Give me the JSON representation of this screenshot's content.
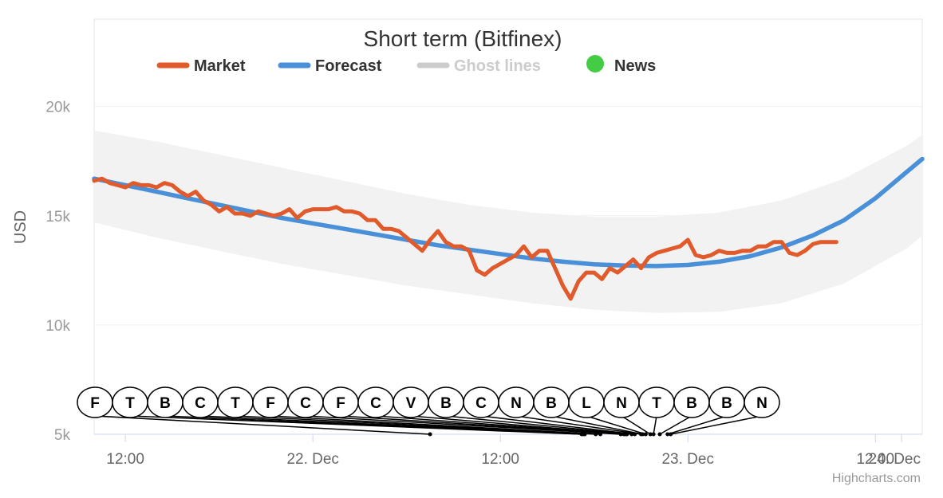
{
  "chart_data": {
    "type": "line",
    "title": "Short term (Bitfinex)",
    "ylabel": "USD",
    "xlabel": "",
    "ylim": [
      5000,
      24000
    ],
    "y_ticks": [
      {
        "value": 5000,
        "label": "5k"
      },
      {
        "value": 10000,
        "label": "10k"
      },
      {
        "value": 15000,
        "label": "15k"
      },
      {
        "value": 20000,
        "label": "20k"
      }
    ],
    "x_range_hours": [
      0,
      53
    ],
    "x_ticks": [
      {
        "hours": 2,
        "label": "12:00"
      },
      {
        "hours": 14,
        "label": "22. Dec"
      },
      {
        "hours": 26,
        "label": "12:00"
      },
      {
        "hours": 38,
        "label": "23. Dec"
      },
      {
        "hours": 50,
        "label": "12:00"
      },
      {
        "hours": 62,
        "label": "24. Dec"
      }
    ],
    "grid": true,
    "legend": {
      "position": "top",
      "items": [
        {
          "name": "Market",
          "color": "#e05a2b",
          "kind": "line",
          "active": true
        },
        {
          "name": "Forecast",
          "color": "#4a90d9",
          "kind": "line",
          "active": true
        },
        {
          "name": "Ghost lines",
          "color": "#cccccc",
          "kind": "line",
          "active": false
        },
        {
          "name": "News",
          "color": "#44cc44",
          "kind": "dot",
          "active": true
        }
      ]
    },
    "series": [
      {
        "name": "Market",
        "color": "#e05a2b",
        "x": [
          0.0,
          0.5,
          1.0,
          1.5,
          2.0,
          2.5,
          3.0,
          3.5,
          4.0,
          4.5,
          5.0,
          5.5,
          6.0,
          6.5,
          7.0,
          7.5,
          8.0,
          8.5,
          9.0,
          9.5,
          10.0,
          10.5,
          11.0,
          11.5,
          12.0,
          12.5,
          13.0,
          13.5,
          14.0,
          14.5,
          15.0,
          15.5,
          16.0,
          16.5,
          17.0,
          17.5,
          18.0,
          18.5,
          19.0,
          19.5,
          20.0,
          20.5,
          21.0,
          21.5,
          22.0,
          22.5,
          23.0,
          23.5,
          24.0,
          24.5,
          25.0,
          25.5,
          26.0,
          26.5,
          27.0,
          27.5,
          28.0,
          28.5,
          29.0,
          29.5,
          30.0,
          30.5,
          31.0,
          31.5,
          32.0,
          32.5,
          33.0,
          33.5,
          34.0,
          34.5,
          35.0,
          35.5,
          36.0,
          36.5,
          37.0,
          37.5,
          38.0,
          38.5,
          39.0,
          39.5,
          40.0,
          40.5,
          41.0,
          41.5,
          42.0,
          42.5,
          43.0,
          43.5,
          44.0,
          44.5,
          45.0,
          45.5,
          46.0,
          46.5,
          47.0,
          47.5
        ],
        "values": [
          16600,
          16700,
          16500,
          16400,
          16300,
          16500,
          16400,
          16400,
          16300,
          16500,
          16400,
          16100,
          15900,
          16100,
          15700,
          15500,
          15200,
          15400,
          15100,
          15100,
          15000,
          15200,
          15100,
          15000,
          15100,
          15300,
          14900,
          15200,
          15300,
          15300,
          15300,
          15400,
          15200,
          15200,
          15100,
          14800,
          14800,
          14400,
          14400,
          14300,
          14000,
          13700,
          13400,
          13900,
          14300,
          13800,
          13600,
          13600,
          13400,
          12500,
          12300,
          12600,
          12800,
          13000,
          13200,
          13600,
          13100,
          13400,
          13400,
          12600,
          11800,
          11200,
          12000,
          12400,
          12400,
          12100,
          12600,
          12400,
          12700,
          13000,
          12600,
          13100,
          13300,
          13400,
          13500,
          13600,
          13900,
          13200,
          13100,
          13200,
          13400,
          13300,
          13300,
          13400,
          13400,
          13600,
          13600,
          13800,
          13800,
          13300,
          13200,
          13400,
          13700,
          13800,
          13800,
          13800
        ]
      },
      {
        "name": "Forecast",
        "color": "#4a90d9",
        "x": [
          0,
          2,
          4,
          6,
          8,
          10,
          12,
          14,
          16,
          18,
          20,
          22,
          24,
          26,
          28,
          30,
          32,
          34,
          36,
          38,
          40,
          42,
          44,
          46,
          48,
          50,
          52,
          53
        ],
        "values": [
          16700,
          16400,
          16100,
          15800,
          15500,
          15200,
          14900,
          14650,
          14400,
          14150,
          13900,
          13650,
          13450,
          13250,
          13050,
          12900,
          12780,
          12720,
          12700,
          12750,
          12900,
          13150,
          13550,
          14100,
          14800,
          15800,
          17000,
          17600
        ]
      }
    ],
    "bands": [
      {
        "name": "Ghost lines",
        "x": [
          0,
          4,
          8,
          12,
          16,
          20,
          24,
          28,
          32,
          36,
          40,
          44,
          48,
          52,
          53
        ],
        "upper": [
          18900,
          18400,
          17800,
          17200,
          16600,
          16000,
          15500,
          15150,
          14950,
          14950,
          15150,
          15700,
          16700,
          18200,
          18700
        ],
        "lower": [
          14700,
          14000,
          13400,
          12800,
          12300,
          11800,
          11400,
          11000,
          10700,
          10550,
          10600,
          11000,
          11900,
          13500,
          14100
        ]
      }
    ],
    "news_markers": {
      "labels": [
        "F",
        "T",
        "B",
        "C",
        "T",
        "F",
        "C",
        "F",
        "C",
        "V",
        "B",
        "C",
        "N",
        "B",
        "L",
        "N",
        "T",
        "B",
        "B",
        "N"
      ],
      "hours": [
        21.5,
        31.2,
        31.3,
        31.4,
        32.1,
        32.4,
        33.7,
        33.9,
        34.0,
        34.1,
        34.4,
        34.6,
        35.0,
        35.1,
        35.3,
        35.6,
        35.8,
        36.2,
        36.7,
        36.9
      ]
    },
    "credits": "Highcharts.com"
  }
}
